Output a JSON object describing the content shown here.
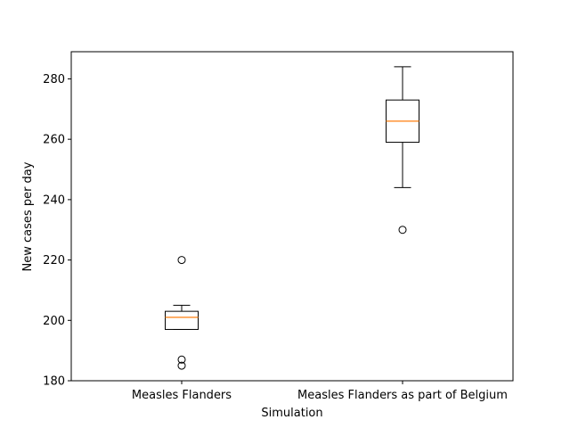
{
  "chart_data": {
    "type": "box",
    "title": "",
    "xlabel": "Simulation",
    "ylabel": "New cases per day",
    "ylim": [
      180,
      289
    ],
    "yticks": [
      180,
      200,
      220,
      240,
      260,
      280
    ],
    "categories": [
      "Measles Flanders",
      "Measles Flanders as part of Belgium"
    ],
    "boxes": [
      {
        "whisker_low": 197,
        "q1": 197,
        "median": 201,
        "q3": 203,
        "whisker_high": 205,
        "outliers": [
          220,
          187,
          185
        ]
      },
      {
        "whisker_low": 244,
        "q1": 259,
        "median": 266,
        "q3": 273,
        "whisker_high": 284,
        "outliers": [
          230
        ]
      }
    ],
    "grid": false,
    "colors": {
      "box": "#000000",
      "median": "#ff7f0e",
      "background": "#ffffff"
    }
  }
}
